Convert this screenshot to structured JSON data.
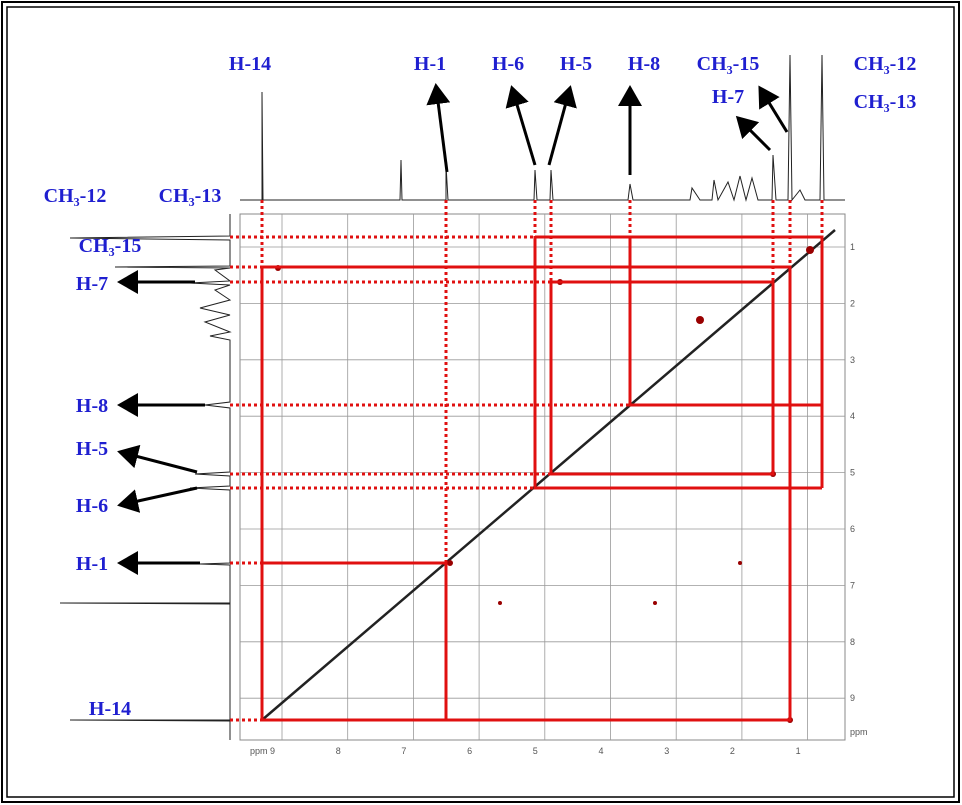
{
  "top_labels": [
    "H-14",
    "H-1",
    "H-6",
    "H-5",
    "H-8",
    "CH₃-15",
    "H-7",
    "CH₃-12",
    "CH₃-13"
  ],
  "left_labels": [
    "CH₃-12",
    "CH₃-13",
    "CH₃-15",
    "H-7",
    "H-8",
    "H-5",
    "H-6",
    "H-1",
    "H-14"
  ],
  "x_axis": {
    "unit": "ppm",
    "ticks": [
      "9",
      "8",
      "7",
      "6",
      "5",
      "4",
      "3",
      "2",
      "1"
    ]
  },
  "y_axis": {
    "unit": "ppm",
    "ticks": [
      "1",
      "2",
      "3",
      "4",
      "5",
      "6",
      "7",
      "8",
      "9"
    ]
  }
}
